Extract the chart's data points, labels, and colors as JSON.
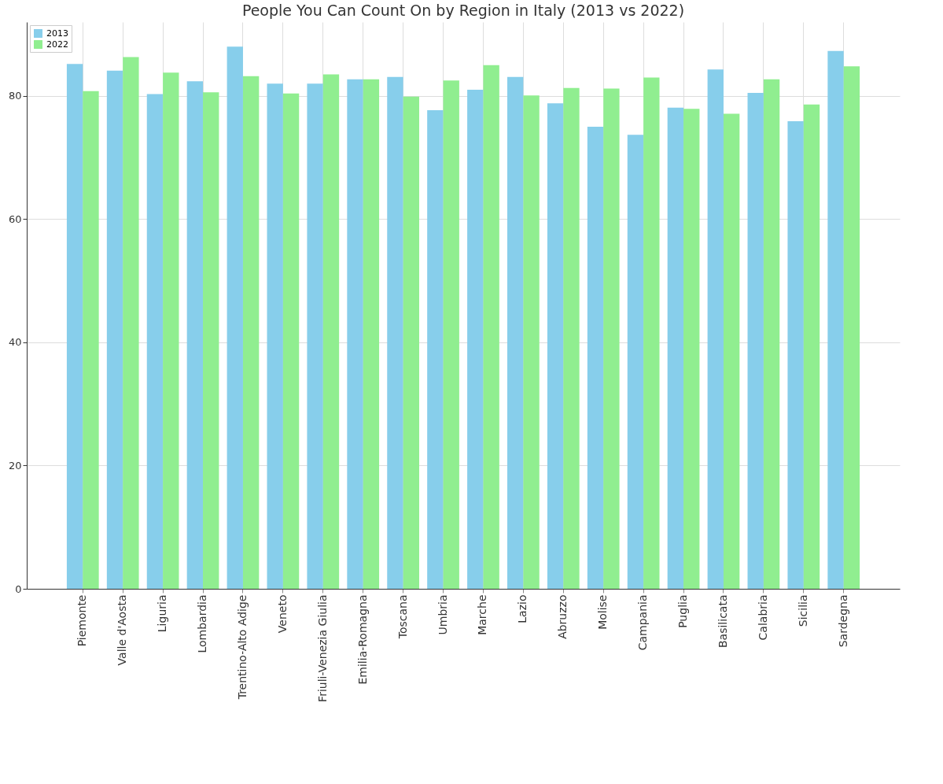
{
  "chart_data": {
    "type": "bar",
    "title": "People You Can Count On by Region in Italy (2013 vs 2022)",
    "categories": [
      "Piemonte",
      "Valle d'Aosta",
      "Liguria",
      "Lombardia",
      "Trentino-Alto Adige",
      "Veneto",
      "Friuli-Venezia Giulia",
      "Emilia-Romagna",
      "Toscana",
      "Umbria",
      "Marche",
      "Lazio",
      "Abruzzo",
      "Molise",
      "Campania",
      "Puglia",
      "Basilicata",
      "Calabria",
      "Sicilia",
      "Sardegna"
    ],
    "series": [
      {
        "name": "2013",
        "color": "#87ceeb",
        "values": [
          85.2,
          84.1,
          80.3,
          82.4,
          88.0,
          82.0,
          82.0,
          82.7,
          83.1,
          77.7,
          81.0,
          83.1,
          78.8,
          75.0,
          73.7,
          78.1,
          84.3,
          80.5,
          75.9,
          87.3
        ]
      },
      {
        "name": "2022",
        "color": "#90ee90",
        "values": [
          80.8,
          86.3,
          83.8,
          80.6,
          83.2,
          80.4,
          83.5,
          82.7,
          79.9,
          82.5,
          85.0,
          80.1,
          81.3,
          81.2,
          83.0,
          77.9,
          77.1,
          82.7,
          78.6,
          84.8
        ]
      }
    ],
    "ylim": [
      0,
      92
    ],
    "yticks": [
      0,
      20,
      40,
      60,
      80
    ],
    "grid": true,
    "legend": "top left"
  }
}
